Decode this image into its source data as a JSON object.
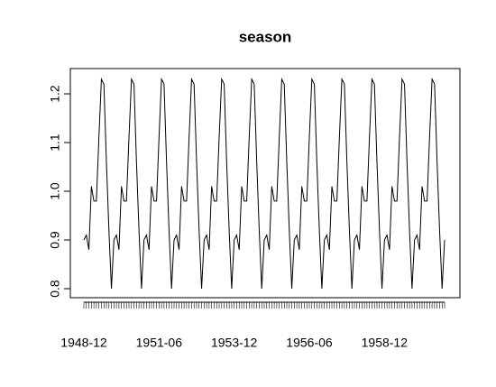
{
  "chart_data": {
    "type": "line",
    "title": "season",
    "categories": [
      "1948-12",
      null,
      null,
      null,
      null,
      null,
      null,
      null,
      null,
      null,
      null,
      null,
      null,
      null,
      null,
      null,
      null,
      null,
      null,
      null,
      null,
      null,
      null,
      null,
      null,
      null,
      null,
      null,
      null,
      null,
      "1951-06",
      null,
      null,
      null,
      null,
      null,
      null,
      null,
      null,
      null,
      null,
      null,
      null,
      null,
      null,
      null,
      null,
      null,
      null,
      null,
      null,
      null,
      null,
      null,
      null,
      null,
      null,
      null,
      null,
      null,
      "1953-12",
      null,
      null,
      null,
      null,
      null,
      null,
      null,
      null,
      null,
      null,
      null,
      null,
      null,
      null,
      null,
      null,
      null,
      null,
      null,
      null,
      null,
      null,
      null,
      null,
      null,
      null,
      null,
      null,
      null,
      "1956-06",
      null,
      null,
      null,
      null,
      null,
      null,
      null,
      null,
      null,
      null,
      null,
      null,
      null,
      null,
      null,
      null,
      null,
      null,
      null,
      null,
      null,
      null,
      null,
      null,
      null,
      null,
      null,
      null,
      null,
      "1958-12",
      null,
      null,
      null,
      null,
      null,
      null,
      null,
      null,
      null,
      null,
      null,
      null,
      null,
      null,
      null,
      null,
      null,
      null,
      null,
      null,
      null,
      null,
      null,
      null
    ],
    "values": [
      0.9,
      0.91,
      0.88,
      1.01,
      0.98,
      0.98,
      1.11,
      1.23,
      1.22,
      1.06,
      0.92,
      0.8,
      0.9,
      0.91,
      0.88,
      1.01,
      0.98,
      0.98,
      1.11,
      1.23,
      1.22,
      1.06,
      0.92,
      0.8,
      0.9,
      0.91,
      0.88,
      1.01,
      0.98,
      0.98,
      1.11,
      1.23,
      1.22,
      1.06,
      0.92,
      0.8,
      0.9,
      0.91,
      0.88,
      1.01,
      0.98,
      0.98,
      1.11,
      1.23,
      1.22,
      1.06,
      0.92,
      0.8,
      0.9,
      0.91,
      0.88,
      1.01,
      0.98,
      0.98,
      1.11,
      1.23,
      1.22,
      1.06,
      0.92,
      0.8,
      0.9,
      0.91,
      0.88,
      1.01,
      0.98,
      0.98,
      1.11,
      1.23,
      1.22,
      1.06,
      0.92,
      0.8,
      0.9,
      0.91,
      0.88,
      1.01,
      0.98,
      0.98,
      1.11,
      1.23,
      1.22,
      1.06,
      0.92,
      0.8,
      0.9,
      0.91,
      0.88,
      1.01,
      0.98,
      0.98,
      1.11,
      1.23,
      1.22,
      1.06,
      0.92,
      0.8,
      0.9,
      0.91,
      0.88,
      1.01,
      0.98,
      0.98,
      1.11,
      1.23,
      1.22,
      1.06,
      0.92,
      0.8,
      0.9,
      0.91,
      0.88,
      1.01,
      0.98,
      0.98,
      1.11,
      1.23,
      1.22,
      1.06,
      0.92,
      0.8,
      0.9,
      0.91,
      0.88,
      1.01,
      0.98,
      0.98,
      1.11,
      1.23,
      1.22,
      1.06,
      0.92,
      0.8,
      0.9,
      0.91,
      0.88,
      1.01,
      0.98,
      0.98,
      1.11,
      1.23,
      1.22,
      1.06,
      0.92,
      0.8,
      0.9
    ],
    "color": "#000000",
    "ylim": [
      0.7815,
      1.2519
    ],
    "yticks": [
      0.8,
      0.9,
      {
        "value": 1,
        "label": "1.0"
      },
      1.1,
      1.2
    ]
  }
}
